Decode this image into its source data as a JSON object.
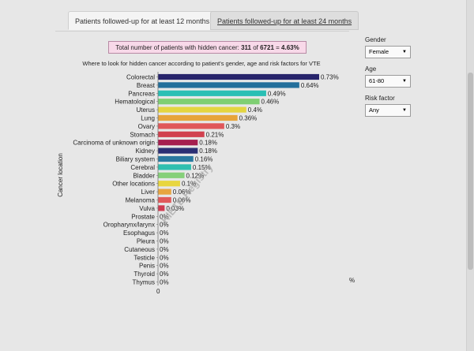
{
  "tabs": [
    {
      "label": "Patients followed-up for at least 12 months",
      "active": true
    },
    {
      "label": "Patients followed-up for at least 24 months",
      "active": false
    }
  ],
  "summary": {
    "prefix": "Total number of patients with hidden cancer: ",
    "count": "311",
    "of_text": " of ",
    "total": "6721",
    "eq_text": " = ",
    "percent": "4.63%"
  },
  "controls": {
    "gender": {
      "label": "Gender",
      "value": "Female"
    },
    "age": {
      "label": "Age",
      "value": "61-80"
    },
    "risk": {
      "label": "Risk factor",
      "value": "Any"
    }
  },
  "watermark": "RIETE Registry",
  "chart_data": {
    "type": "bar",
    "orientation": "horizontal",
    "title": "Where to look for hidden cancer according to patient's gender, age and risk factors for VTE",
    "ylabel": "Cancer location",
    "xlabel": "%",
    "x_tick": "0",
    "xlim": [
      0,
      0.73
    ],
    "categories": [
      "Colorectal",
      "Breast",
      "Pancreas",
      "Hematological",
      "Uterus",
      "Lung",
      "Ovary",
      "Stomach",
      "Carcinoma of unknown origin",
      "Kidney",
      "Biliary system",
      "Cerebral",
      "Bladder",
      "Other locations",
      "Liver",
      "Melanoma",
      "Vulva",
      "Prostate",
      "Oropharynx/larynx",
      "Esophagus",
      "Pleura",
      "Cutaneous",
      "Testicle",
      "Penis",
      "Thyroid",
      "Thymus"
    ],
    "values": [
      0.73,
      0.64,
      0.49,
      0.46,
      0.4,
      0.36,
      0.3,
      0.21,
      0.18,
      0.18,
      0.16,
      0.15,
      0.12,
      0.1,
      0.06,
      0.06,
      0.03,
      0,
      0,
      0,
      0,
      0,
      0,
      0,
      0,
      0
    ],
    "value_labels": [
      "0.73%",
      "0.64%",
      "0.49%",
      "0.46%",
      "0.4%",
      "0.36%",
      "0.3%",
      "0.21%",
      "0.18%",
      "0.18%",
      "0.16%",
      "0.15%",
      "0.12%",
      "0.1%",
      "0.06%",
      "0.06%",
      "0.03%",
      "0%",
      "0%",
      "0%",
      "0%",
      "0%",
      "0%",
      "0%",
      "0%",
      "0%"
    ],
    "colors": [
      "#27246b",
      "#236f9b",
      "#29bfb4",
      "#7fcf73",
      "#e4d540",
      "#e7a43a",
      "#e0575a",
      "#d1414f",
      "#a51e4f",
      "#2b2f74",
      "#2a79a0",
      "#2fbfaf",
      "#86d07a",
      "#e8d63f",
      "#e7a540",
      "#e05a5b",
      "#d03b50",
      "#a02050",
      "#2a2a70",
      "#2d79a2",
      "#30bbb0",
      "#84cf75",
      "#e2d43c",
      "#e7a33b",
      "#e05c5b",
      "#cf3d4d"
    ],
    "legend": "none",
    "grid": false
  }
}
